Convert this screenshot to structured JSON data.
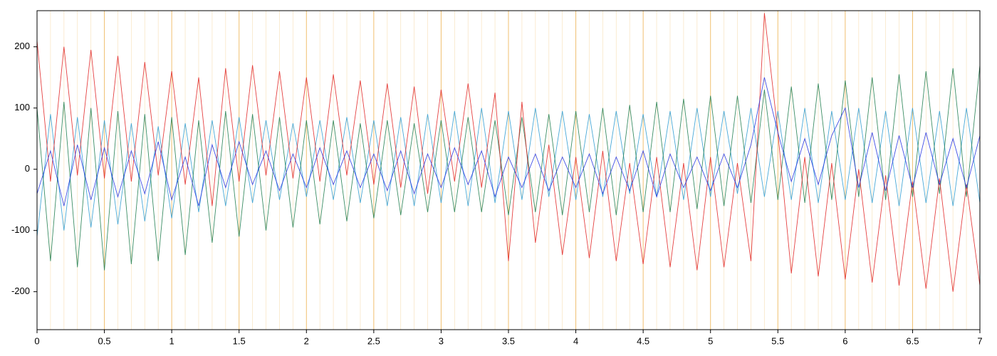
{
  "chart_data": {
    "type": "line",
    "x": [
      0,
      0.1,
      0.2,
      0.3,
      0.4,
      0.5,
      0.6,
      0.7,
      0.8,
      0.9,
      1,
      1.1,
      1.2,
      1.3,
      1.4,
      1.5,
      1.6,
      1.7,
      1.8,
      1.9,
      2,
      2.1,
      2.2,
      2.3,
      2.4,
      2.5,
      2.6,
      2.7,
      2.8,
      2.9,
      3,
      3.1,
      3.2,
      3.3,
      3.4,
      3.5,
      3.6,
      3.7,
      3.8,
      3.9,
      4,
      4.1,
      4.2,
      4.3,
      4.4,
      4.5,
      4.6,
      4.7,
      4.8,
      4.9,
      5,
      5.1,
      5.2,
      5.3,
      5.4,
      5.5,
      5.6,
      5.7,
      5.8,
      5.9,
      6,
      6.1,
      6.2,
      6.3,
      6.4,
      6.5,
      6.6,
      6.7,
      6.8,
      6.9,
      7
    ],
    "series": [
      {
        "color": "#2a9ad0",
        "values": [
          -110,
          90,
          -100,
          85,
          -95,
          80,
          -90,
          75,
          -85,
          70,
          -80,
          75,
          -70,
          80,
          -60,
          85,
          -55,
          80,
          -50,
          75,
          -45,
          80,
          -50,
          85,
          -55,
          80,
          -60,
          85,
          -60,
          90,
          -55,
          95,
          -60,
          100,
          -55,
          95,
          -50,
          100,
          -45,
          95,
          -50,
          90,
          -45,
          95,
          -40,
          90,
          -45,
          95,
          -50,
          100,
          -45,
          95,
          -40,
          100,
          -45,
          95,
          -50,
          100,
          -55,
          95,
          -50,
          100,
          -55,
          95,
          -60,
          100,
          -55,
          95,
          -60,
          100,
          -55
        ]
      },
      {
        "color": "#1a7a4a",
        "values": [
          100,
          -150,
          110,
          -160,
          100,
          -165,
          95,
          -155,
          90,
          -150,
          85,
          -140,
          80,
          -120,
          95,
          -110,
          90,
          -100,
          85,
          -95,
          80,
          -90,
          80,
          -85,
          75,
          -80,
          80,
          -75,
          75,
          -70,
          80,
          -70,
          85,
          -70,
          80,
          -75,
          85,
          -70,
          90,
          -75,
          95,
          -70,
          100,
          -75,
          105,
          -70,
          110,
          -70,
          115,
          -65,
          120,
          -60,
          120,
          -55,
          130,
          -50,
          135,
          -55,
          140,
          -50,
          145,
          -45,
          150,
          -50,
          155,
          -45,
          160,
          -40,
          165,
          -45,
          170
        ]
      },
      {
        "color": "#e02020",
        "values": [
          210,
          -20,
          200,
          -10,
          195,
          -15,
          185,
          -20,
          175,
          -10,
          160,
          -25,
          150,
          -60,
          165,
          -20,
          170,
          -10,
          160,
          -15,
          150,
          -20,
          155,
          -10,
          145,
          -25,
          140,
          -30,
          135,
          -40,
          130,
          -20,
          140,
          -30,
          125,
          -150,
          110,
          -120,
          40,
          -140,
          20,
          -145,
          30,
          -150,
          10,
          -155,
          20,
          -160,
          10,
          -165,
          20,
          -160,
          10,
          -150,
          255,
          60,
          -170,
          20,
          -175,
          10,
          -180,
          0,
          -185,
          -10,
          -190,
          -20,
          -195,
          -15,
          -200,
          -25,
          -190
        ]
      },
      {
        "color": "#2030e0",
        "values": [
          -40,
          30,
          -60,
          40,
          -50,
          35,
          -45,
          30,
          -40,
          45,
          -50,
          20,
          -60,
          40,
          -30,
          45,
          -25,
          30,
          -35,
          25,
          -30,
          35,
          -25,
          30,
          -30,
          25,
          -35,
          30,
          -40,
          25,
          -30,
          35,
          -25,
          30,
          -45,
          20,
          -30,
          25,
          -35,
          20,
          -30,
          25,
          -40,
          20,
          -35,
          30,
          -45,
          25,
          -30,
          20,
          -35,
          25,
          -30,
          40,
          150,
          60,
          -20,
          50,
          -25,
          55,
          100,
          -30,
          60,
          -35,
          55,
          -30,
          60,
          -25,
          50,
          -30,
          55
        ]
      }
    ],
    "xlim": [
      0,
      7
    ],
    "ylim": [
      -262,
      259
    ],
    "xticks": [
      0,
      0.5,
      1,
      1.5,
      2,
      2.5,
      3,
      3.5,
      4,
      4.5,
      5,
      5.5,
      6,
      6.5,
      7
    ],
    "yticks": [
      -200,
      -100,
      0,
      100,
      200
    ],
    "minor_per_major": 5,
    "grid_color": "#f0c070"
  }
}
